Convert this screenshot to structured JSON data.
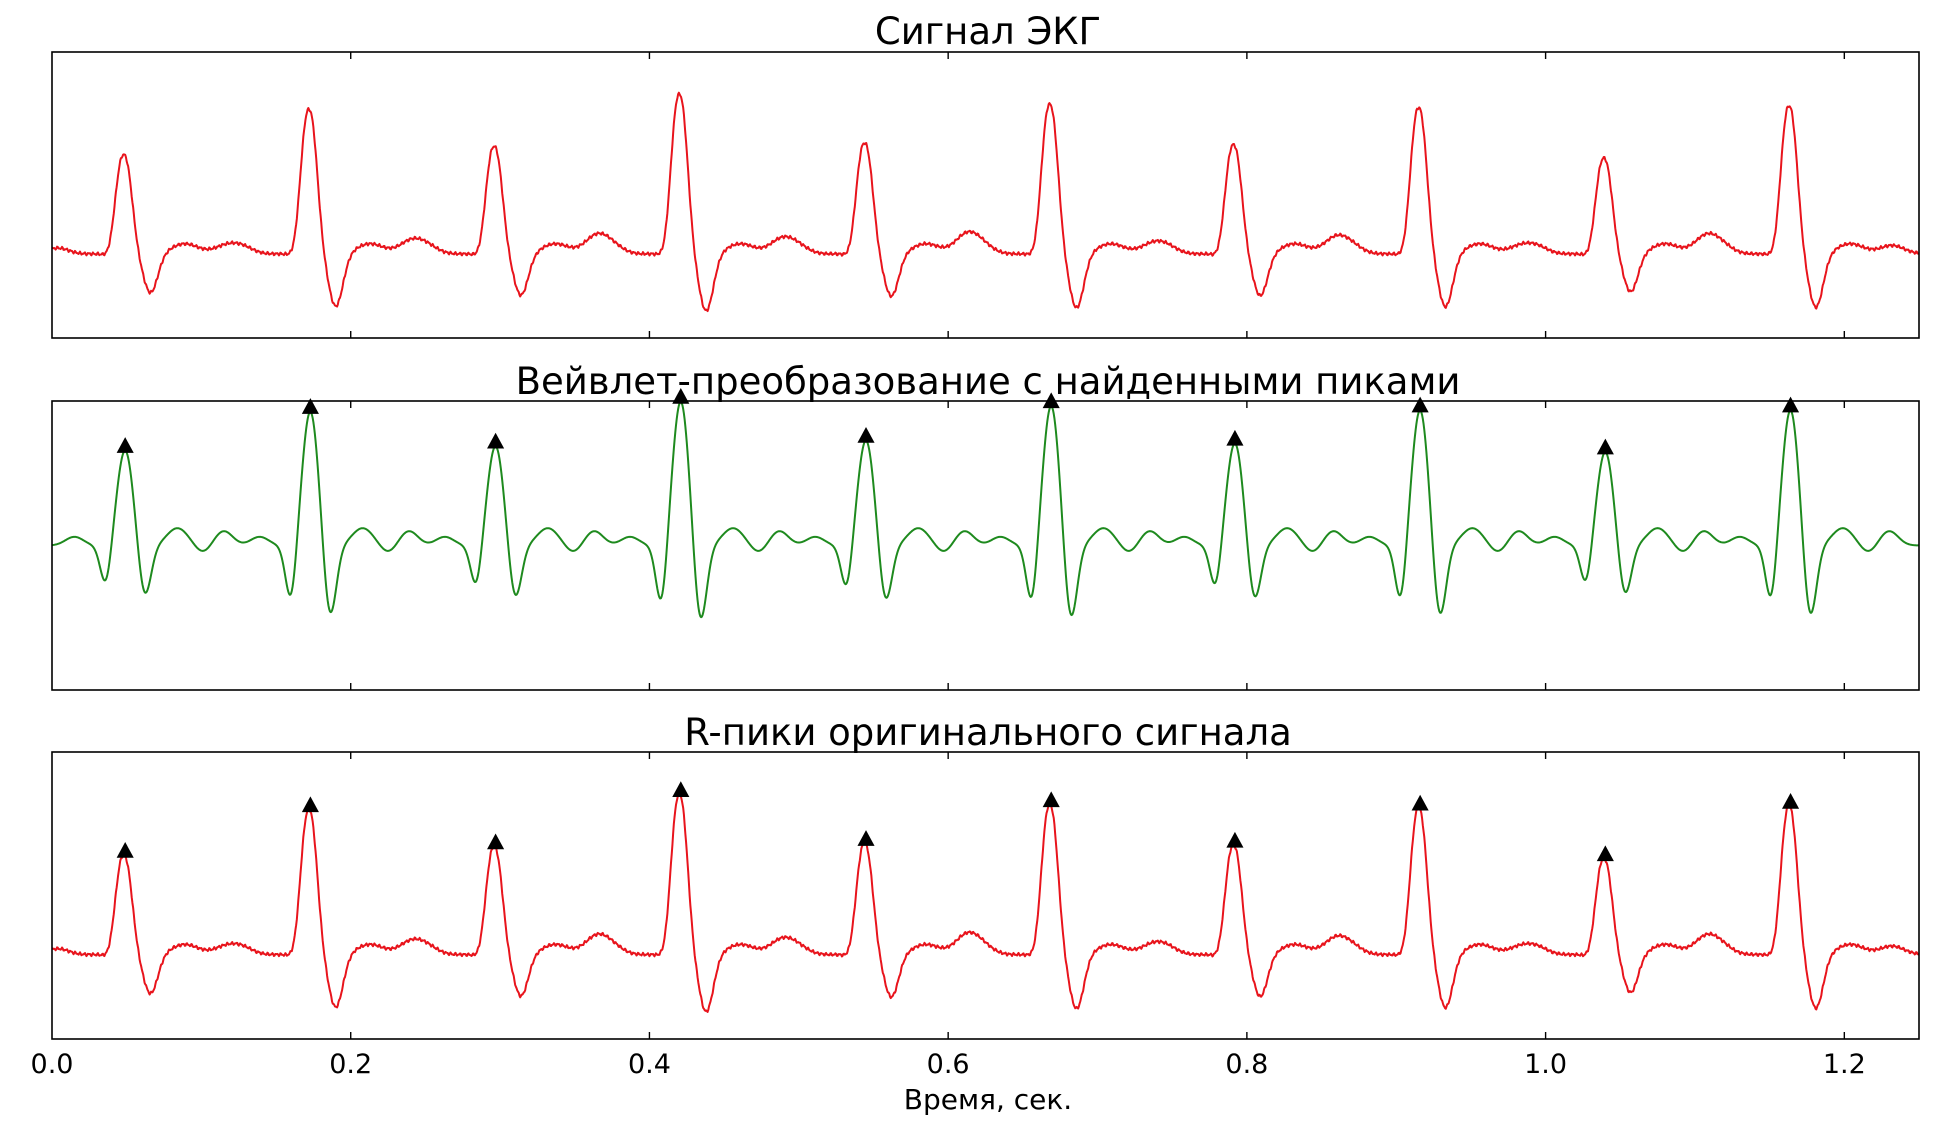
{
  "chart_data": [
    {
      "type": "line",
      "title": "Сигнал ЭКГ",
      "series": [
        {
          "color": "#e8141c",
          "style": "ecg"
        }
      ],
      "xlim": [
        0,
        1.25
      ],
      "ylim": [
        -0.5,
        1.2
      ],
      "yticks_visible": false,
      "x_tick_labels_visible": false,
      "grid": false
    },
    {
      "type": "line",
      "title": "Вейвлет-преобразование с найденными пиками",
      "series": [
        {
          "color": "#1e8a1e",
          "style": "wavelet"
        }
      ],
      "markers": {
        "shape": "triangle-up",
        "color": "#000000",
        "on": "peaks"
      },
      "xlim": [
        0,
        1.25
      ],
      "ylim": [
        -1.0,
        1.0
      ],
      "yticks_visible": false,
      "x_tick_labels_visible": false,
      "grid": false
    },
    {
      "type": "line",
      "title": "R-пики оригинального сигнала",
      "series": [
        {
          "color": "#e8141c",
          "style": "ecg"
        }
      ],
      "markers": {
        "shape": "triangle-up",
        "color": "#000000",
        "on": "peaks"
      },
      "xlim": [
        0,
        1.25
      ],
      "ylim": [
        -0.5,
        1.2
      ],
      "yticks_visible": false,
      "xlabel": "Время, сек.",
      "xticks": [
        0.0,
        0.2,
        0.4,
        0.6,
        0.8,
        1.0,
        1.2
      ],
      "xtick_labels": [
        "0.0",
        "0.2",
        "0.4",
        "0.6",
        "0.8",
        "1.0",
        "1.2"
      ],
      "grid": false
    }
  ],
  "beats": {
    "r_peak_times": [
      0.049,
      0.173,
      0.297,
      0.421,
      0.545,
      0.669,
      0.792,
      0.916,
      1.04,
      1.164
    ],
    "r_peak_amplitudes": [
      0.59,
      0.86,
      0.64,
      0.95,
      0.66,
      0.89,
      0.65,
      0.87,
      0.57,
      0.88
    ],
    "wavelet_peak_amplitudes": [
      0.66,
      0.93,
      0.69,
      1.0,
      0.73,
      0.97,
      0.71,
      0.94,
      0.65,
      0.94
    ],
    "t_wave_amplitudes": [
      0.05,
      0.08,
      0.11,
      0.09,
      0.12,
      0.06,
      0.1,
      0.05,
      0.11,
      0.05
    ]
  }
}
